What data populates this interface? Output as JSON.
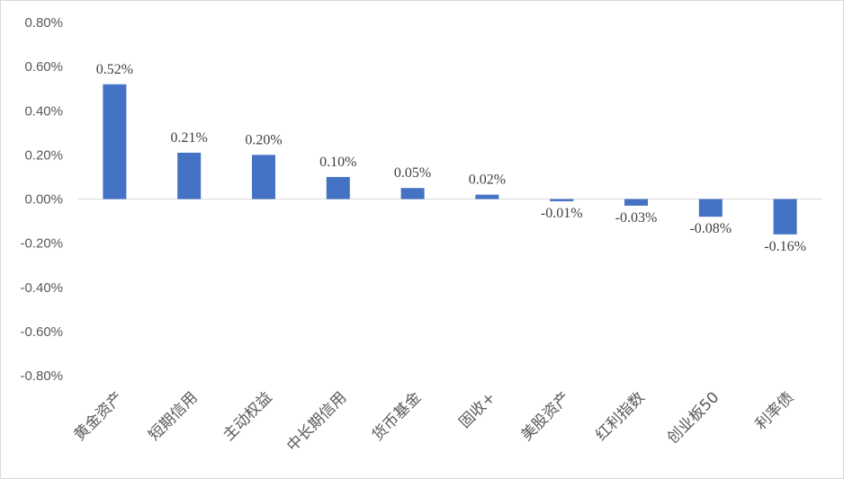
{
  "chart_data": {
    "type": "bar",
    "categories": [
      "黄金资产",
      "短期信用",
      "主动权益",
      "中长期信用",
      "货币基金",
      "固收+",
      "美股资产",
      "红利指数",
      "创业板50",
      "利率债"
    ],
    "values": [
      0.52,
      0.21,
      0.2,
      0.1,
      0.05,
      0.02,
      -0.01,
      -0.03,
      -0.08,
      -0.16
    ],
    "data_labels": [
      "0.52%",
      "0.21%",
      "0.20%",
      "0.10%",
      "0.05%",
      "0.02%",
      "-0.01%",
      "-0.03%",
      "-0.08%",
      "-0.16%"
    ],
    "yticks": [
      0.8,
      0.6,
      0.4,
      0.2,
      0.0,
      -0.2,
      -0.4,
      -0.6,
      -0.8
    ],
    "ytick_labels": [
      "0.80%",
      "0.60%",
      "0.40%",
      "0.20%",
      "0.00%",
      "-0.20%",
      "-0.40%",
      "-0.60%",
      "-0.80%"
    ],
    "ylim": [
      -0.8,
      0.8
    ],
    "unit": "%",
    "title": "",
    "xlabel": "",
    "ylabel": "",
    "grid": false,
    "legend": "none",
    "bar_color": "#4472C4",
    "axis_color": "#d9d9d9"
  }
}
